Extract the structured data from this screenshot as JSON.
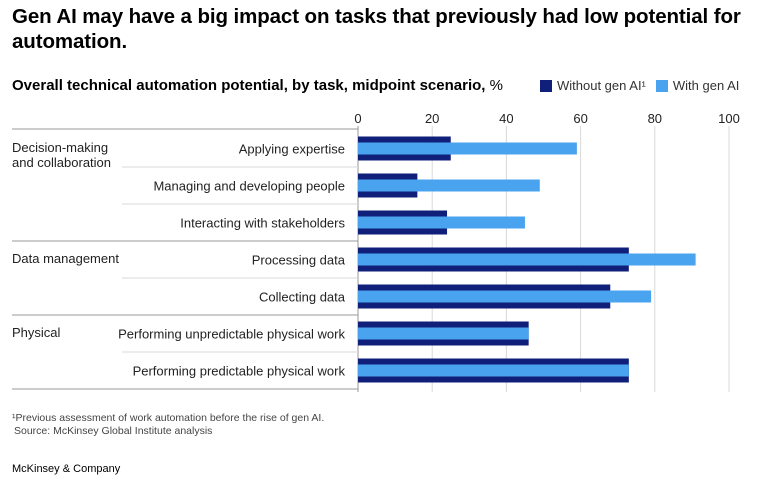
{
  "title": "Gen AI may have a big impact on tasks that previously had low potential for automation.",
  "subtitle": "Overall technical automation potential, by task, midpoint scenario,",
  "subtitle_unit": "%",
  "legend": {
    "without": "Without gen AI¹",
    "with": "With gen AI"
  },
  "colors": {
    "without": "#0f1f7a",
    "with": "#4aa3ef",
    "grid": "#d9d9d9",
    "rule": "#999999",
    "text": "#222222"
  },
  "footnote": "¹Previous assessment of work automation before the rise of gen AI.",
  "source": "Source: McKinsey Global Institute analysis",
  "brand": "McKinsey & Company",
  "chart_data": {
    "type": "bar",
    "orientation": "horizontal",
    "title": "Overall technical automation potential, by task, midpoint scenario, %",
    "xlim": [
      0,
      100
    ],
    "ticks": [
      "0",
      "20",
      "40",
      "60",
      "80",
      "100"
    ],
    "groups": [
      {
        "name": "Decision-making and collaboration",
        "lines": [
          "Decision-making",
          "and collaboration"
        ],
        "tasks": [
          "Applying expertise",
          "Managing and developing people",
          "Interacting with stakeholders"
        ]
      },
      {
        "name": "Data management",
        "lines": [
          "Data management"
        ],
        "tasks": [
          "Processing data",
          "Collecting data"
        ]
      },
      {
        "name": "Physical",
        "lines": [
          "Physical"
        ],
        "tasks": [
          "Performing unpredictable physical work",
          "Performing predictable physical work"
        ]
      }
    ],
    "categories": [
      "Applying expertise",
      "Managing and developing people",
      "Interacting with stakeholders",
      "Processing data",
      "Collecting data",
      "Performing unpredictable physical work",
      "Performing predictable physical work"
    ],
    "series": [
      {
        "name": "Without gen AI",
        "values": [
          25,
          16,
          24,
          73,
          68,
          46,
          73
        ]
      },
      {
        "name": "With gen AI",
        "values": [
          59,
          49,
          45,
          91,
          79,
          46,
          73
        ]
      }
    ]
  }
}
